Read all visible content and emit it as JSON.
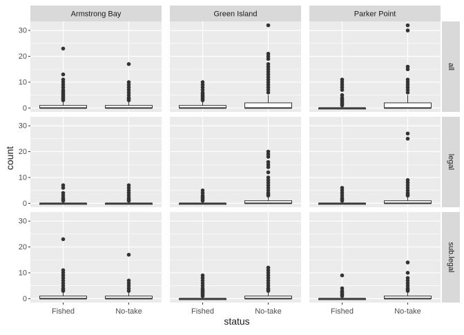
{
  "chart_data": {
    "type": "boxplot",
    "layout": "facet_grid",
    "xlabel": "status",
    "ylabel": "count",
    "ylim": [
      -1.5,
      33.5
    ],
    "yticks": [
      0,
      10,
      20,
      30
    ],
    "grid": true,
    "categories": [
      "Fished",
      "No-take"
    ],
    "columns": [
      "Armstrong Bay",
      "Green Island",
      "Parker Point"
    ],
    "rows": [
      "all",
      "legal",
      "sub.legal"
    ],
    "panels": [
      [
        {
          "col": "Armstrong Bay",
          "row": "all",
          "boxes": [
            {
              "category": "Fished",
              "q1": 0,
              "median": 0,
              "q3": 1,
              "whisker_low": 0,
              "whisker_high": 2.5,
              "outliers": [
                3,
                3.5,
                4,
                4.5,
                5,
                5.5,
                6,
                6.5,
                7,
                8,
                9,
                10,
                11,
                13,
                23
              ]
            },
            {
              "category": "No-take",
              "q1": 0,
              "median": 0,
              "q3": 1,
              "whisker_low": 0,
              "whisker_high": 2.5,
              "outliers": [
                3,
                3.5,
                4,
                5,
                6,
                7,
                8,
                9,
                10,
                17
              ]
            }
          ]
        },
        {
          "col": "Green Island",
          "row": "all",
          "boxes": [
            {
              "category": "Fished",
              "q1": 0,
              "median": 0,
              "q3": 1,
              "whisker_low": 0,
              "whisker_high": 2.5,
              "outliers": [
                3,
                3.5,
                4,
                4.5,
                5,
                5.5,
                6,
                7,
                8,
                9,
                10
              ]
            },
            {
              "category": "No-take",
              "q1": 0,
              "median": 0,
              "q3": 2,
              "whisker_low": 0,
              "whisker_high": 5,
              "outliers": [
                6,
                7,
                8,
                9,
                10,
                11,
                12,
                13,
                14,
                15,
                16,
                17,
                19,
                20,
                21,
                32
              ]
            }
          ]
        },
        {
          "col": "Parker Point",
          "row": "all",
          "boxes": [
            {
              "category": "Fished",
              "q1": 0,
              "median": 0,
              "q3": 0,
              "whisker_low": 0,
              "whisker_high": 0,
              "outliers": [
                1,
                1.5,
                2,
                2.5,
                3,
                3.5,
                4,
                5,
                7,
                8,
                9,
                10,
                11
              ]
            },
            {
              "category": "No-take",
              "q1": 0,
              "median": 0,
              "q3": 2,
              "whisker_low": 0,
              "whisker_high": 5,
              "outliers": [
                6,
                7,
                8,
                9,
                10,
                11,
                15,
                16,
                30,
                32
              ]
            }
          ]
        }
      ],
      [
        {
          "col": "Armstrong Bay",
          "row": "legal",
          "boxes": [
            {
              "category": "Fished",
              "q1": 0,
              "median": 0,
              "q3": 0,
              "whisker_low": 0,
              "whisker_high": 0,
              "outliers": [
                1,
                1.5,
                2,
                3,
                4,
                6,
                7
              ]
            },
            {
              "category": "No-take",
              "q1": 0,
              "median": 0,
              "q3": 0,
              "whisker_low": 0,
              "whisker_high": 0,
              "outliers": [
                1,
                1.5,
                2,
                3,
                4,
                5,
                6,
                7
              ]
            }
          ]
        },
        {
          "col": "Green Island",
          "row": "legal",
          "boxes": [
            {
              "category": "Fished",
              "q1": 0,
              "median": 0,
              "q3": 0,
              "whisker_low": 0,
              "whisker_high": 0,
              "outliers": [
                1,
                1.5,
                2,
                2.5,
                3,
                4,
                5
              ]
            },
            {
              "category": "No-take",
              "q1": 0,
              "median": 0,
              "q3": 1,
              "whisker_low": 0,
              "whisker_high": 2.5,
              "outliers": [
                3,
                3.5,
                4,
                5,
                6,
                7,
                8,
                9,
                10,
                12,
                14,
                15,
                16,
                18,
                19,
                20
              ]
            }
          ]
        },
        {
          "col": "Parker Point",
          "row": "legal",
          "boxes": [
            {
              "category": "Fished",
              "q1": 0,
              "median": 0,
              "q3": 0,
              "whisker_low": 0,
              "whisker_high": 0,
              "outliers": [
                1,
                1.5,
                2,
                3,
                4,
                5,
                6
              ]
            },
            {
              "category": "No-take",
              "q1": 0,
              "median": 0,
              "q3": 1,
              "whisker_low": 0,
              "whisker_high": 2.5,
              "outliers": [
                3,
                3.5,
                4,
                5,
                6,
                7,
                8,
                9,
                25,
                27
              ]
            }
          ]
        }
      ],
      [
        {
          "col": "Armstrong Bay",
          "row": "sub.legal",
          "boxes": [
            {
              "category": "Fished",
              "q1": 0,
              "median": 0,
              "q3": 1,
              "whisker_low": 0,
              "whisker_high": 2.5,
              "outliers": [
                3,
                3.5,
                4,
                5,
                6,
                7,
                8,
                9,
                10,
                11,
                23
              ]
            },
            {
              "category": "No-take",
              "q1": 0,
              "median": 0,
              "q3": 1,
              "whisker_low": 0,
              "whisker_high": 2.5,
              "outliers": [
                3,
                4,
                5,
                6,
                7,
                17
              ]
            }
          ]
        },
        {
          "col": "Green Island",
          "row": "sub.legal",
          "boxes": [
            {
              "category": "Fished",
              "q1": 0,
              "median": 0,
              "q3": 0,
              "whisker_low": 0,
              "whisker_high": 0,
              "outliers": [
                1,
                1.5,
                2,
                2.5,
                3,
                3.5,
                4,
                5,
                6,
                7,
                8,
                9
              ]
            },
            {
              "category": "No-take",
              "q1": 0,
              "median": 0,
              "q3": 1,
              "whisker_low": 0,
              "whisker_high": 2.5,
              "outliers": [
                3,
                3.5,
                4,
                5,
                6,
                7,
                8,
                9,
                10,
                11,
                12
              ]
            }
          ]
        },
        {
          "col": "Parker Point",
          "row": "sub.legal",
          "boxes": [
            {
              "category": "Fished",
              "q1": 0,
              "median": 0,
              "q3": 0,
              "whisker_low": 0,
              "whisker_high": 0,
              "outliers": [
                1,
                1.5,
                2,
                2.5,
                3,
                4,
                9
              ]
            },
            {
              "category": "No-take",
              "q1": 0,
              "median": 0,
              "q3": 1,
              "whisker_low": 0,
              "whisker_high": 2.5,
              "outliers": [
                3,
                3.5,
                4,
                5,
                6,
                7,
                8,
                10,
                14
              ]
            }
          ]
        }
      ]
    ]
  },
  "colors": {
    "panel_background": "#ebebeb",
    "strip_background": "#d9d9d9",
    "grid_line": "#ffffff",
    "box_fill": "#ffffff",
    "box_stroke": "#333333",
    "point": "#333333",
    "text": "#1a1a1a",
    "tick_text": "#4d4d4d"
  }
}
